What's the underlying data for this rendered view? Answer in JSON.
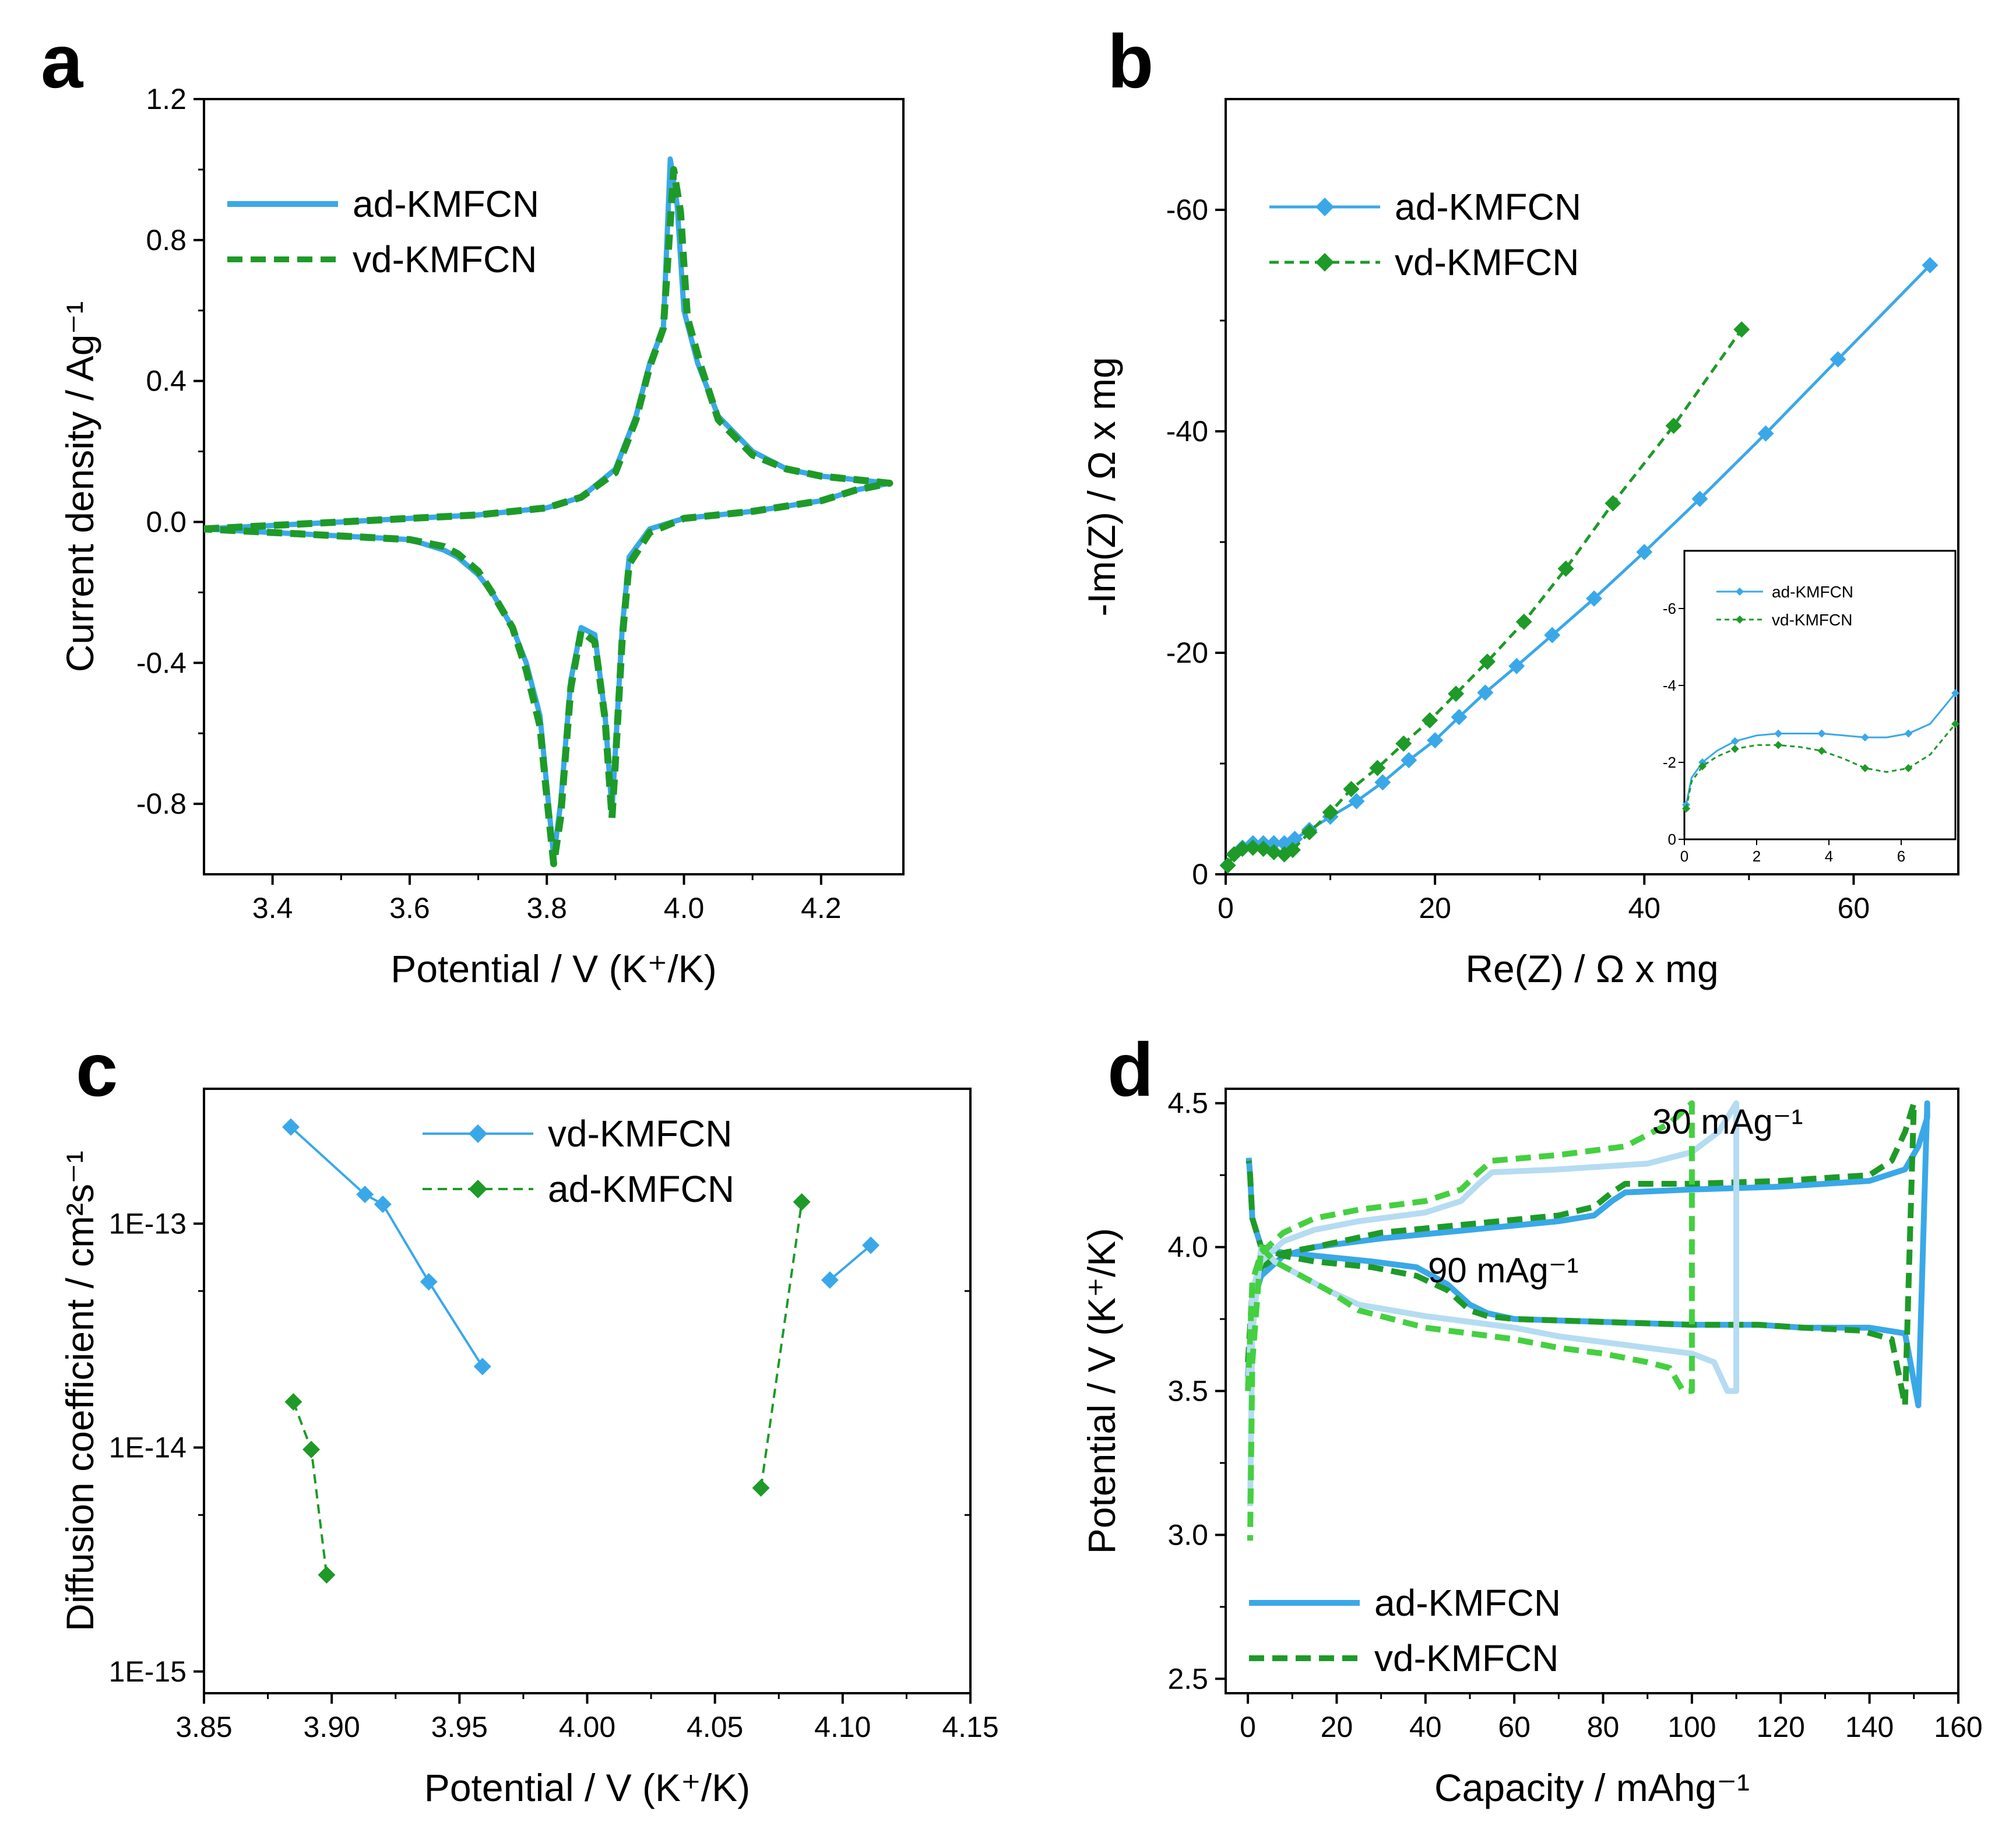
{
  "chart_data": [
    {
      "panel_label": "a",
      "type": "line",
      "xlabel": "Potential / V (K⁺/K)",
      "ylabel": "Current density / Ag⁻¹",
      "xlim": [
        3.3,
        4.32
      ],
      "ylim": [
        -1.0,
        1.2
      ],
      "x_ticks": [
        3.4,
        3.6,
        3.8,
        4.0,
        4.2
      ],
      "x_tick_labels": [
        "3.4",
        "3.6",
        "3.8",
        "4.0",
        "4.2"
      ],
      "y_ticks": [
        -0.8,
        -0.4,
        0.0,
        0.4,
        0.8,
        1.2
      ],
      "y_tick_labels": [
        "-0.8",
        "-0.4",
        "0.0",
        "0.4",
        "0.8",
        "1.2"
      ],
      "legend_position": "top-left",
      "series": [
        {
          "name": "ad-KMFCN",
          "color": "#3aa8e8",
          "style": "solid",
          "x": [
            3.3,
            3.4,
            3.5,
            3.6,
            3.7,
            3.8,
            3.85,
            3.9,
            3.93,
            3.95,
            3.97,
            3.98,
            3.99,
            4.0,
            4.02,
            4.05,
            4.1,
            4.15,
            4.2,
            4.25,
            4.3,
            4.25,
            4.2,
            4.1,
            4.0,
            3.95,
            3.92,
            3.91,
            3.9,
            3.895,
            3.885,
            3.87,
            3.85,
            3.835,
            3.82,
            3.81,
            3.8,
            3.79,
            3.77,
            3.75,
            3.72,
            3.7,
            3.67,
            3.65,
            3.6,
            3.5,
            3.4,
            3.3
          ],
          "y": [
            -0.02,
            -0.01,
            0.0,
            0.01,
            0.02,
            0.04,
            0.07,
            0.15,
            0.3,
            0.45,
            0.55,
            1.03,
            0.9,
            0.6,
            0.45,
            0.3,
            0.2,
            0.15,
            0.13,
            0.12,
            0.11,
            0.09,
            0.06,
            0.03,
            0.01,
            -0.02,
            -0.1,
            -0.3,
            -0.65,
            -0.82,
            -0.55,
            -0.32,
            -0.3,
            -0.45,
            -0.8,
            -0.95,
            -0.75,
            -0.55,
            -0.4,
            -0.3,
            -0.2,
            -0.15,
            -0.1,
            -0.08,
            -0.05,
            -0.04,
            -0.03,
            -0.02
          ]
        },
        {
          "name": "vd-KMFCN",
          "color": "#1e9a28",
          "style": "dashed",
          "x": [
            3.3,
            3.4,
            3.5,
            3.6,
            3.7,
            3.8,
            3.85,
            3.9,
            3.93,
            3.95,
            3.97,
            3.985,
            3.995,
            4.005,
            4.025,
            4.05,
            4.1,
            4.15,
            4.2,
            4.25,
            4.3,
            4.25,
            4.2,
            4.1,
            4.0,
            3.95,
            3.92,
            3.91,
            3.9,
            3.895,
            3.885,
            3.87,
            3.85,
            3.835,
            3.82,
            3.81,
            3.8,
            3.79,
            3.77,
            3.75,
            3.72,
            3.7,
            3.67,
            3.65,
            3.6,
            3.5,
            3.4,
            3.3
          ],
          "y": [
            -0.02,
            -0.01,
            0.0,
            0.01,
            0.02,
            0.04,
            0.07,
            0.14,
            0.29,
            0.44,
            0.55,
            1.0,
            0.88,
            0.58,
            0.44,
            0.29,
            0.19,
            0.15,
            0.13,
            0.12,
            0.11,
            0.09,
            0.06,
            0.03,
            0.01,
            -0.03,
            -0.12,
            -0.33,
            -0.68,
            -0.84,
            -0.56,
            -0.34,
            -0.31,
            -0.47,
            -0.84,
            -0.97,
            -0.78,
            -0.58,
            -0.42,
            -0.3,
            -0.2,
            -0.14,
            -0.09,
            -0.07,
            -0.05,
            -0.04,
            -0.03,
            -0.02
          ]
        }
      ]
    },
    {
      "panel_label": "b",
      "type": "line",
      "xlabel": "Re(Z) / Ω x mg",
      "ylabel": "-Im(Z) / Ω x mg",
      "xlim": [
        0,
        70
      ],
      "ylim": [
        0,
        70
      ],
      "y_axis_reversed_sign": true,
      "x_ticks": [
        0,
        20,
        40,
        60
      ],
      "x_tick_labels": [
        "0",
        "20",
        "40",
        "60"
      ],
      "y_ticks": [
        0,
        20,
        40,
        60
      ],
      "y_tick_labels": [
        "0",
        "-20",
        "-40",
        "-60"
      ],
      "legend_position": "top-left",
      "series": [
        {
          "name": "ad-KMFCN",
          "color": "#3aa8e8",
          "style": "solid",
          "marker": "diamond",
          "x": [
            0.2,
            0.8,
            1.6,
            2.6,
            3.6,
            4.6,
            5.6,
            6.6,
            8.0,
            10.0,
            12.5,
            15.0,
            17.5,
            20.0,
            22.3,
            24.8,
            27.8,
            31.2,
            35.2,
            40.0,
            45.3,
            51.6,
            58.5,
            67.3
          ],
          "y": [
            0.8,
            1.8,
            2.4,
            2.8,
            2.8,
            2.8,
            2.8,
            3.2,
            4.0,
            5.2,
            6.6,
            8.3,
            10.3,
            12.1,
            14.2,
            16.4,
            18.8,
            21.6,
            24.9,
            29.1,
            33.9,
            39.8,
            46.5,
            55.0
          ]
        },
        {
          "name": "vd-KMFCN",
          "color": "#1e9a28",
          "style": "dashed",
          "marker": "diamond",
          "x": [
            0.2,
            0.8,
            1.6,
            2.6,
            3.6,
            4.6,
            5.6,
            6.4,
            8.0,
            10.0,
            12.0,
            14.5,
            17.0,
            19.5,
            22.0,
            25.0,
            28.5,
            32.5,
            37.0,
            42.8,
            49.3
          ],
          "y": [
            0.8,
            1.8,
            2.3,
            2.4,
            2.3,
            2.0,
            1.8,
            2.2,
            3.8,
            5.6,
            7.7,
            9.6,
            11.8,
            13.9,
            16.3,
            19.2,
            22.8,
            27.6,
            33.5,
            40.5,
            49.2
          ]
        }
      ],
      "inset": {
        "xlim": [
          0,
          7.5
        ],
        "ylim": [
          0,
          7.5
        ],
        "x_ticks": [
          0,
          2,
          4,
          6
        ],
        "x_tick_labels": [
          "0",
          "2",
          "4",
          "6"
        ],
        "y_ticks": [
          0,
          2,
          4,
          6
        ],
        "y_tick_labels": [
          "0",
          "-2",
          "-4",
          "-6"
        ],
        "series": [
          {
            "name": "ad-KMFCN",
            "color": "#3aa8e8",
            "x": [
              0.05,
              0.2,
              0.5,
              0.9,
              1.4,
              2.0,
              2.6,
              3.2,
              3.8,
              4.4,
              5.0,
              5.6,
              6.2,
              6.8,
              7.5
            ],
            "y": [
              0.9,
              1.6,
              2.0,
              2.3,
              2.55,
              2.7,
              2.75,
              2.75,
              2.75,
              2.7,
              2.65,
              2.65,
              2.75,
              3.0,
              3.8
            ]
          },
          {
            "name": "vd-KMFCN",
            "color": "#1e9a28",
            "x": [
              0.05,
              0.2,
              0.5,
              0.9,
              1.4,
              2.0,
              2.6,
              3.2,
              3.8,
              4.4,
              5.0,
              5.6,
              6.2,
              6.8,
              7.5
            ],
            "y": [
              0.8,
              1.5,
              1.9,
              2.15,
              2.35,
              2.45,
              2.45,
              2.4,
              2.3,
              2.1,
              1.85,
              1.75,
              1.85,
              2.2,
              3.0
            ]
          }
        ]
      }
    },
    {
      "panel_label": "c",
      "type": "scatter",
      "xlabel": "Potential / V (K⁺/K)",
      "ylabel": "Diffusion coefficient / cm²s⁻¹",
      "xlim": [
        3.85,
        4.15
      ],
      "ylim": [
        8e-16,
        4e-13
      ],
      "y_scale": "log",
      "x_ticks": [
        3.85,
        3.9,
        3.95,
        4.0,
        4.05,
        4.1,
        4.15
      ],
      "x_tick_labels": [
        "3.85",
        "3.90",
        "3.95",
        "4.00",
        "4.05",
        "4.10",
        "4.15"
      ],
      "y_ticks": [
        1e-15,
        1e-14,
        1e-13
      ],
      "y_tick_labels": [
        "1E-15",
        "1E-14",
        "1E-13"
      ],
      "legend_position": "top-center",
      "series": [
        {
          "name": "vd-KMFCN",
          "color": "#3aa8e8",
          "style": "solid",
          "marker": "diamond",
          "segments": [
            {
              "x": [
                3.884,
                3.913,
                3.92,
                3.938,
                3.959
              ],
              "y": [
                2.7e-13,
                1.35e-13,
                1.22e-13,
                5.5e-14,
                2.3e-14
              ]
            },
            {
              "x": [
                4.095,
                4.111
              ],
              "y": [
                5.6e-14,
                8e-14
              ]
            }
          ]
        },
        {
          "name": "ad-KMFCN",
          "color": "#1e9a28",
          "style": "dashed",
          "marker": "diamond",
          "segments": [
            {
              "x": [
                3.885,
                3.892,
                3.898
              ],
              "y": [
                1.6e-14,
                9.8e-15,
                2.7e-15
              ]
            },
            {
              "x": [
                4.068,
                4.084
              ],
              "y": [
                6.6e-15,
                1.25e-13
              ]
            }
          ]
        }
      ]
    },
    {
      "panel_label": "d",
      "type": "line",
      "xlabel": "Capacity / mAhg⁻¹",
      "ylabel": "Potential / V (K⁺/K)",
      "xlim": [
        -5,
        160
      ],
      "ylim": [
        2.45,
        4.55
      ],
      "x_ticks": [
        0,
        20,
        40,
        60,
        80,
        100,
        120,
        140,
        160
      ],
      "x_tick_labels": [
        "0",
        "20",
        "40",
        "60",
        "80",
        "100",
        "120",
        "140",
        "160"
      ],
      "y_ticks": [
        2.5,
        3.0,
        3.5,
        4.0,
        4.5
      ],
      "y_tick_labels": [
        "2.5",
        "3.0",
        "3.5",
        "4.0",
        "4.5"
      ],
      "legend_position": "bottom-left",
      "annotations": [
        "30 mAg⁻¹",
        "90 mAg⁻¹"
      ],
      "series": [
        {
          "name": "ad-KMFCN",
          "color": "#3aa8e8",
          "style": "solid",
          "rate": "30",
          "x": [
            0,
            1,
            3,
            8,
            15,
            30,
            50,
            70,
            78,
            82,
            85,
            100,
            120,
            140,
            148,
            151,
            153,
            153,
            151,
            148,
            140,
            125,
            115,
            110,
            100,
            80,
            60,
            54,
            50,
            45,
            38,
            28,
            15,
            8,
            3,
            1,
            0.5,
            0.2
          ],
          "y": [
            3.55,
            3.8,
            3.9,
            3.97,
            4.0,
            4.03,
            4.06,
            4.09,
            4.11,
            4.16,
            4.19,
            4.2,
            4.21,
            4.23,
            4.27,
            4.35,
            4.45,
            4.5,
            3.45,
            3.7,
            3.72,
            3.72,
            3.73,
            3.73,
            3.73,
            3.74,
            3.75,
            3.77,
            3.8,
            3.87,
            3.93,
            3.95,
            3.97,
            3.98,
            4.0,
            4.1,
            4.25,
            4.31
          ]
        },
        {
          "name": "vd-KMFCN",
          "color": "#1e9a28",
          "style": "dashed",
          "rate": "30",
          "x": [
            0,
            1,
            3,
            8,
            15,
            30,
            50,
            70,
            78,
            82,
            85,
            100,
            120,
            140,
            145,
            148,
            150,
            150,
            148,
            145,
            138,
            125,
            115,
            110,
            100,
            80,
            60,
            54,
            50,
            45,
            38,
            28,
            15,
            8,
            3,
            1,
            0.5,
            0.2
          ],
          "y": [
            3.6,
            3.85,
            3.93,
            3.98,
            4.0,
            4.05,
            4.08,
            4.11,
            4.14,
            4.19,
            4.22,
            4.22,
            4.23,
            4.25,
            4.3,
            4.4,
            4.5,
            4.5,
            3.45,
            3.68,
            3.71,
            3.72,
            3.73,
            3.73,
            3.73,
            3.74,
            3.75,
            3.76,
            3.78,
            3.85,
            3.9,
            3.93,
            3.95,
            3.97,
            4.0,
            4.1,
            4.25,
            4.3
          ]
        },
        {
          "name": "ad-KMFCN",
          "color": "#b5dcf2",
          "style": "solid",
          "rate": "90",
          "x": [
            0,
            1,
            3,
            8,
            15,
            25,
            40,
            48,
            52,
            55,
            70,
            90,
            100,
            106,
            110,
            110,
            108,
            105,
            100,
            90,
            80,
            70,
            60,
            40,
            25,
            18,
            12,
            6,
            3,
            1,
            0.5
          ],
          "y": [
            3.5,
            3.85,
            3.95,
            4.02,
            4.06,
            4.09,
            4.12,
            4.16,
            4.22,
            4.26,
            4.27,
            4.29,
            4.33,
            4.4,
            4.5,
            3.5,
            3.5,
            3.6,
            3.63,
            3.65,
            3.67,
            3.69,
            3.72,
            3.76,
            3.8,
            3.85,
            3.9,
            3.95,
            4.0,
            3.7,
            3.1
          ]
        },
        {
          "name": "vd-KMFCN",
          "color": "#44d040",
          "style": "dashed",
          "rate": "90",
          "x": [
            0,
            1,
            3,
            8,
            15,
            25,
            40,
            48,
            52,
            55,
            70,
            85,
            95,
            100,
            100,
            98,
            95,
            90,
            80,
            70,
            60,
            40,
            25,
            18,
            12,
            6,
            3,
            1,
            0.5
          ],
          "y": [
            3.5,
            3.88,
            3.98,
            4.05,
            4.1,
            4.13,
            4.16,
            4.2,
            4.26,
            4.3,
            4.32,
            4.35,
            4.43,
            4.5,
            3.5,
            3.5,
            3.58,
            3.6,
            3.63,
            3.65,
            3.68,
            3.72,
            3.78,
            3.85,
            3.9,
            3.95,
            4.0,
            3.6,
            2.98
          ]
        }
      ]
    }
  ]
}
